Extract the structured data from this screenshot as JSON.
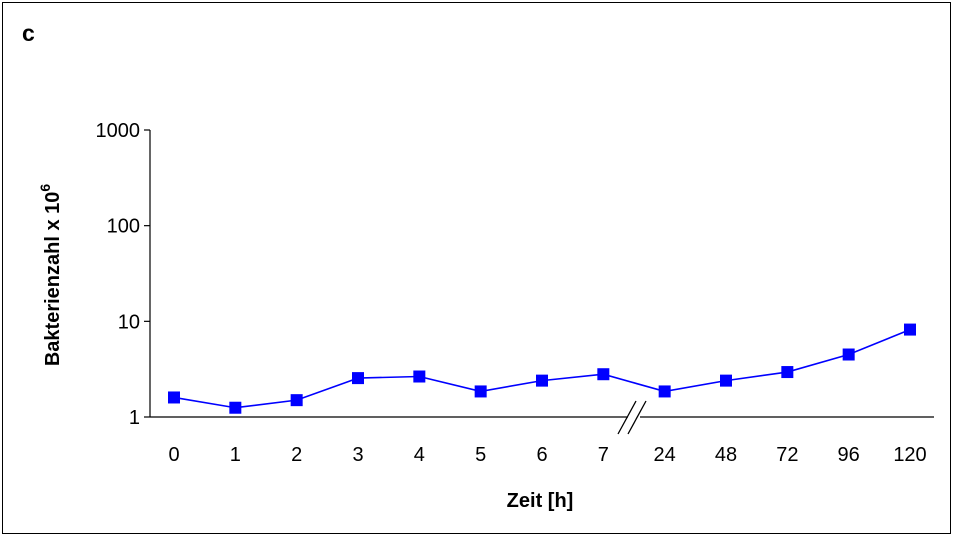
{
  "panel_label": "c",
  "chart_data": {
    "type": "line",
    "title": "",
    "xlabel": "Zeit [h]",
    "ylabel_main": "Bakterienzahl x 10",
    "ylabel_exp": "6",
    "y_scale": "log",
    "ylim": [
      1,
      1000
    ],
    "y_ticks": [
      1,
      10,
      100,
      1000
    ],
    "y_tick_labels": [
      "1",
      "10",
      "100",
      "1000"
    ],
    "x_axis_break": "between 7 and 24",
    "categories": [
      "0",
      "1",
      "2",
      "3",
      "4",
      "5",
      "6",
      "7",
      "24",
      "48",
      "72",
      "96",
      "120"
    ],
    "series": [
      {
        "values": [
          1.6,
          1.25,
          1.5,
          2.55,
          2.65,
          1.85,
          2.4,
          2.8,
          1.85,
          2.4,
          2.95,
          4.5,
          8.2
        ],
        "color": "#0000ff",
        "marker": "square"
      }
    ],
    "grid": false,
    "legend": "none"
  }
}
